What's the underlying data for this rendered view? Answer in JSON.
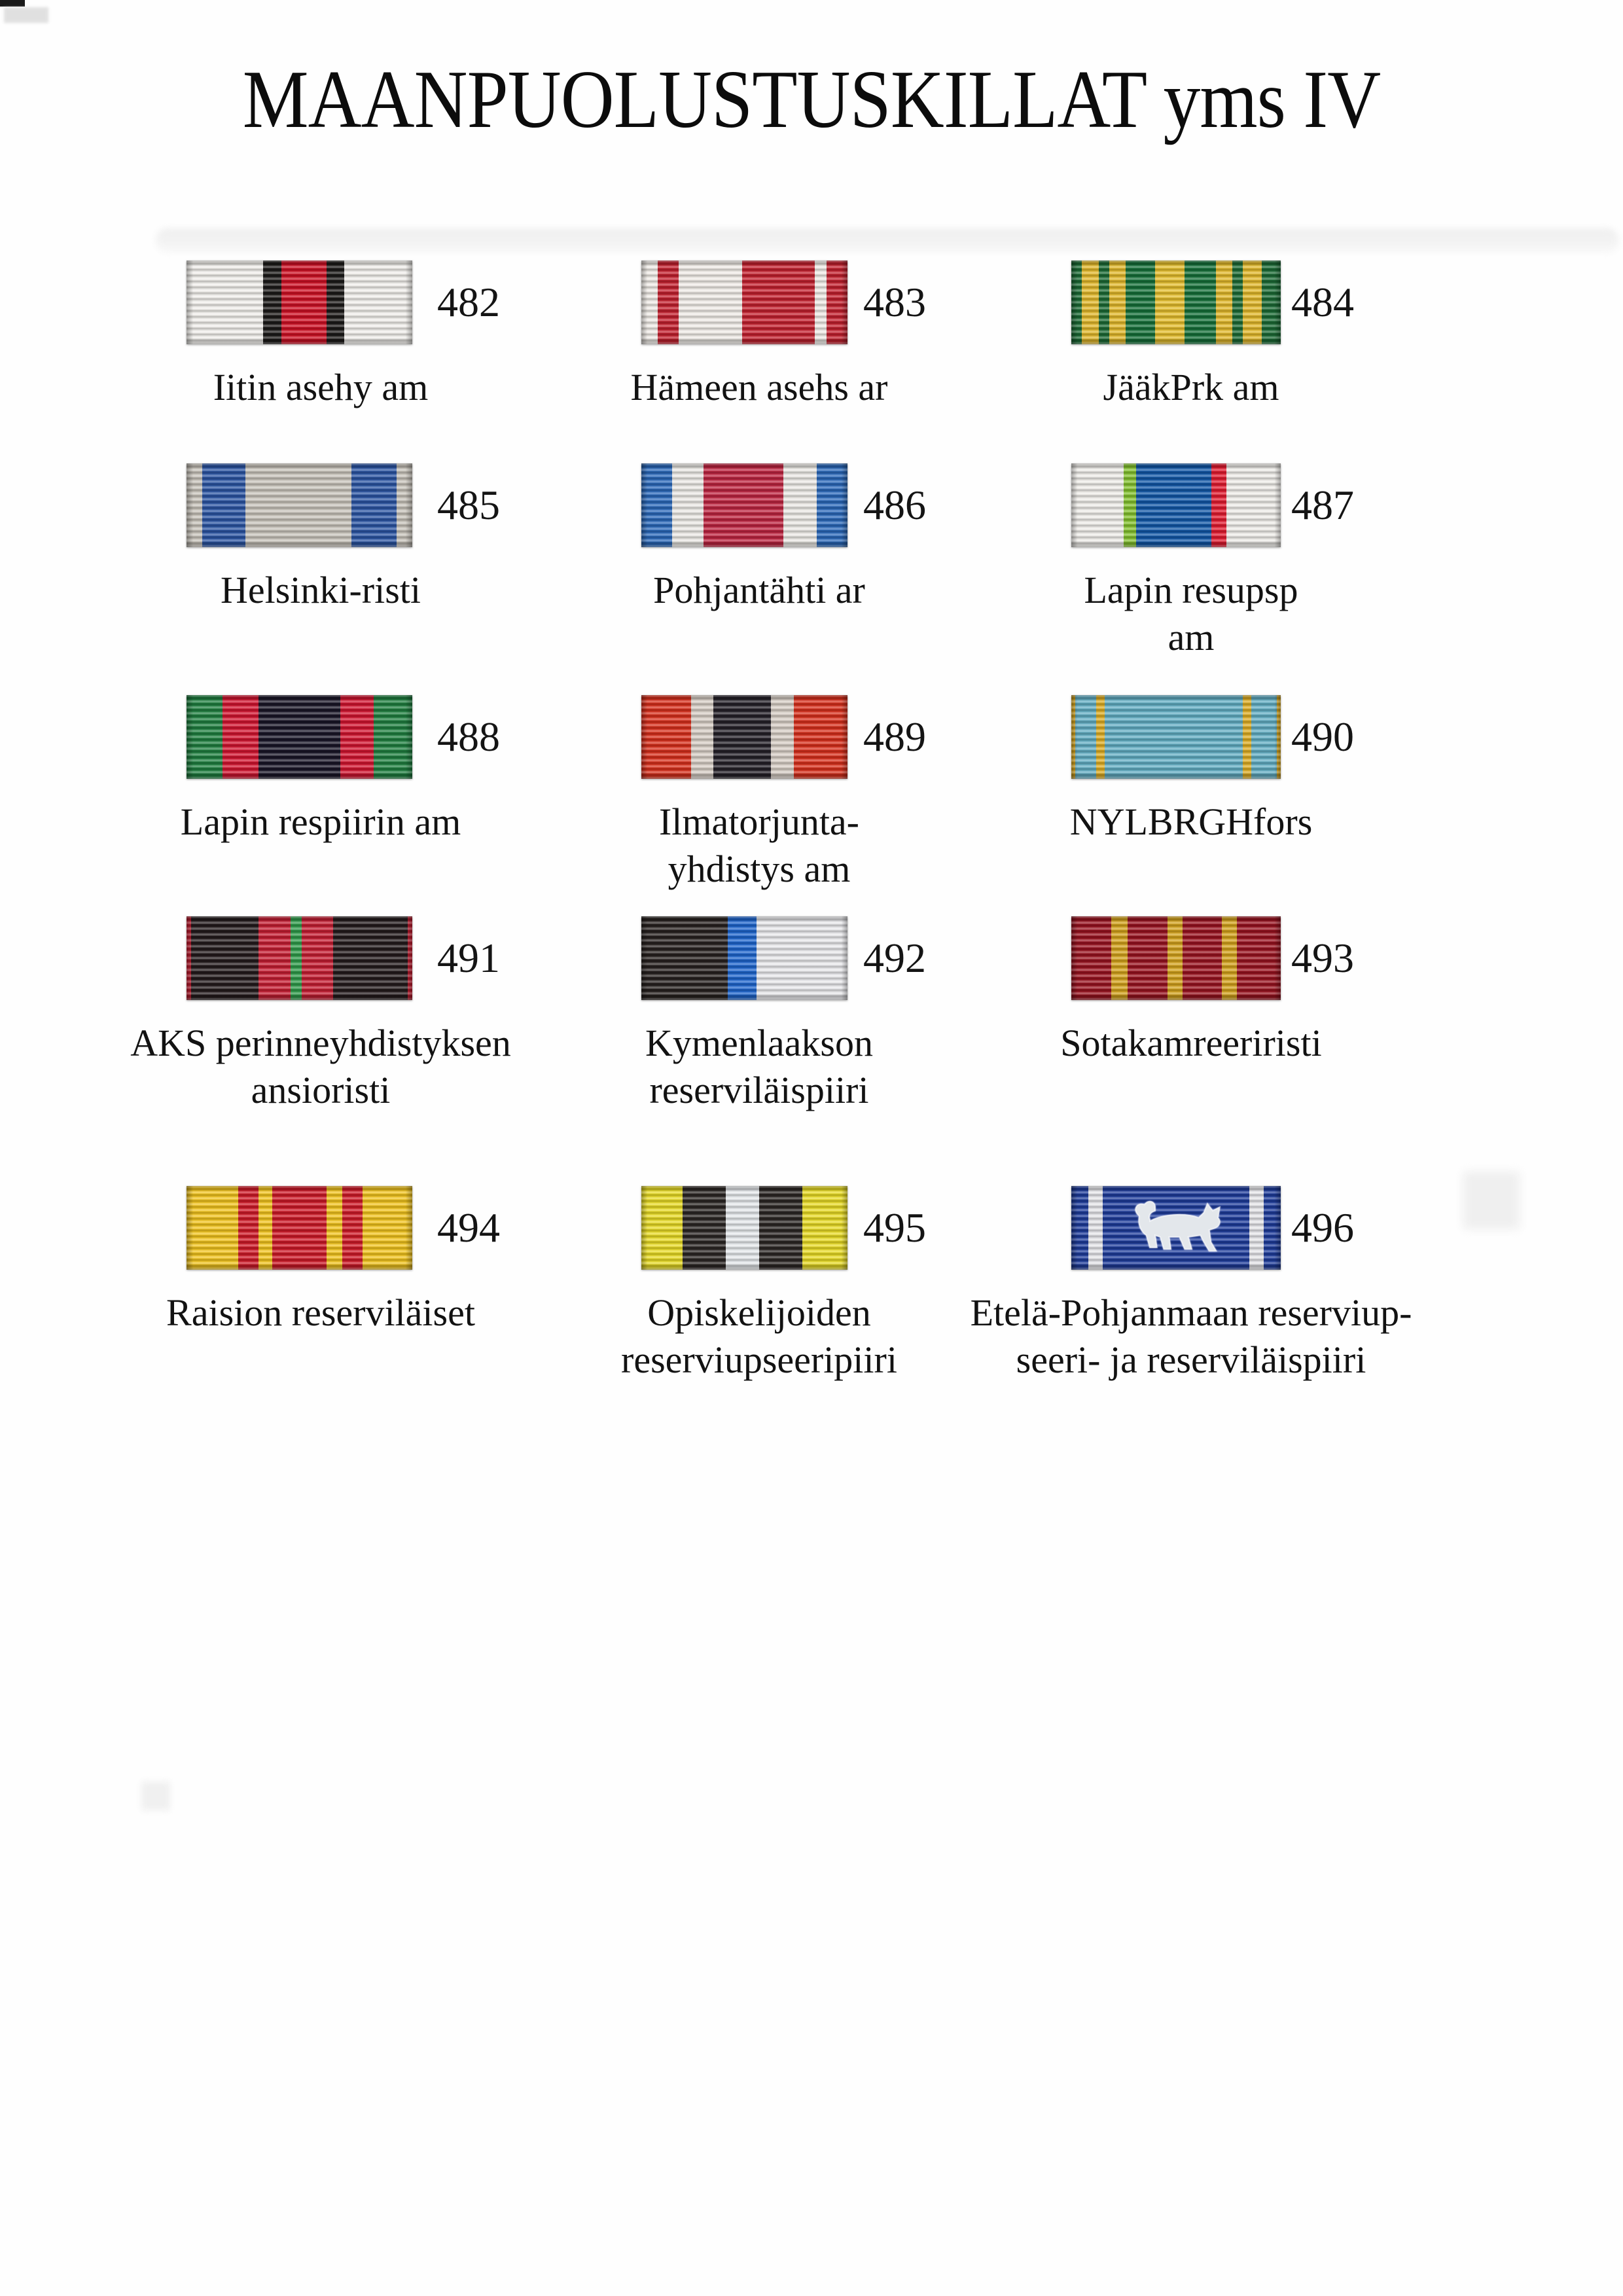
{
  "page": {
    "title": "MAANPUOLUSTUSKILLAT yms IV"
  },
  "ribbons": [
    {
      "number": "482",
      "caption": [
        "Iitin asehy am"
      ],
      "stripes": [
        [
          "#f2f0ec",
          34
        ],
        [
          "#1c1a18",
          8
        ],
        [
          "#cf1024",
          20
        ],
        [
          "#1c1a18",
          8
        ],
        [
          "#f2f0ec",
          30
        ]
      ]
    },
    {
      "number": "483",
      "caption": [
        "Hämeen asehs ar"
      ],
      "stripes": [
        [
          "#f1ede8",
          8
        ],
        [
          "#c4202e",
          10
        ],
        [
          "#f1ede8",
          31
        ],
        [
          "#c4202e",
          35
        ],
        [
          "#f1ede8",
          6
        ],
        [
          "#c4202e",
          10
        ]
      ]
    },
    {
      "number": "484",
      "caption": [
        "JääkPrk am"
      ],
      "stripes": [
        [
          "#1b6b35",
          5
        ],
        [
          "#e3b92b",
          8
        ],
        [
          "#1b6b35",
          5
        ],
        [
          "#e3b92b",
          8
        ],
        [
          "#157039",
          14
        ],
        [
          "#e5be2c",
          14
        ],
        [
          "#157039",
          15
        ],
        [
          "#e3b92b",
          8
        ],
        [
          "#1b6b35",
          5
        ],
        [
          "#e3b92b",
          9
        ],
        [
          "#1b6b35",
          9
        ]
      ]
    },
    {
      "number": "485",
      "caption": [
        "Helsinki-risti"
      ],
      "stripes": [
        [
          "#c9c4bb",
          7
        ],
        [
          "#2b55a4",
          19
        ],
        [
          "#c9c4bb",
          47
        ],
        [
          "#2b55a4",
          20
        ],
        [
          "#c9c4bb",
          7
        ]
      ]
    },
    {
      "number": "486",
      "caption": [
        "Pohjantähti ar"
      ],
      "stripes": [
        [
          "#2a69bb",
          15
        ],
        [
          "#eceae6",
          15
        ],
        [
          "#bf2440",
          39
        ],
        [
          "#eceae6",
          16
        ],
        [
          "#2a69bb",
          15
        ]
      ]
    },
    {
      "number": "487",
      "caption": [
        "Lapin resupsp",
        "am"
      ],
      "stripes": [
        [
          "#f0eeea",
          25
        ],
        [
          "#84c32e",
          6
        ],
        [
          "#1157a8",
          36
        ],
        [
          "#e41b30",
          7
        ],
        [
          "#f0eeea",
          26
        ]
      ]
    },
    {
      "number": "488",
      "caption": [
        "Lapin respiirin am"
      ],
      "stripes": [
        [
          "#1f8040",
          16
        ],
        [
          "#d31430",
          16
        ],
        [
          "#191527",
          36
        ],
        [
          "#d31430",
          15
        ],
        [
          "#1f8040",
          17
        ]
      ]
    },
    {
      "number": "489",
      "caption": [
        "Ilmatorjunta-",
        "yhdistys am"
      ],
      "stripes": [
        [
          "#d92f1c",
          24
        ],
        [
          "#d8cfc6",
          11
        ],
        [
          "#242028",
          28
        ],
        [
          "#d8cfc6",
          11
        ],
        [
          "#d92f1c",
          26
        ]
      ]
    },
    {
      "number": "490",
      "caption": [
        "NYLBRGHfors"
      ],
      "stripes": [
        [
          "#dfae24",
          2
        ],
        [
          "#62aec4",
          10
        ],
        [
          "#dfae24",
          4
        ],
        [
          "#62aec4",
          66
        ],
        [
          "#dfae24",
          4
        ],
        [
          "#62aec4",
          12
        ],
        [
          "#dfae24",
          2
        ]
      ]
    },
    {
      "number": "491",
      "caption": [
        "AKS perinneyhdistyksen",
        "ansioristi"
      ],
      "stripes": [
        [
          "#c81f33",
          2
        ],
        [
          "#231a1c",
          30
        ],
        [
          "#c61d32",
          14
        ],
        [
          "#2f9c4b",
          5
        ],
        [
          "#c61d32",
          14
        ],
        [
          "#231a1c",
          33
        ],
        [
          "#c81f33",
          2
        ]
      ]
    },
    {
      "number": "492",
      "caption": [
        "Kymenlaakson",
        "reserviläispiiri"
      ],
      "stripes": [
        [
          "#27211f",
          42
        ],
        [
          "#1e66cf",
          14
        ],
        [
          "#e9e9ec",
          44
        ]
      ]
    },
    {
      "number": "493",
      "caption": [
        "Sotakamreeriristi"
      ],
      "stripes": [
        [
          "#99121f",
          19
        ],
        [
          "#d4a31c",
          8
        ],
        [
          "#99121f",
          19
        ],
        [
          "#d4a31c",
          7
        ],
        [
          "#99121f",
          19
        ],
        [
          "#d4a31c",
          7
        ],
        [
          "#99121f",
          21
        ]
      ]
    },
    {
      "number": "494",
      "caption": [
        "Raision reserviläiset"
      ],
      "stripes": [
        [
          "#f3c51e",
          23
        ],
        [
          "#d01a28",
          9
        ],
        [
          "#f3c51e",
          6
        ],
        [
          "#ce1827",
          24
        ],
        [
          "#f3c51e",
          7
        ],
        [
          "#d01a28",
          9
        ],
        [
          "#f3c51e",
          22
        ]
      ]
    },
    {
      "number": "495",
      "caption": [
        "Opiskelijoiden",
        "reserviupseeripiiri"
      ],
      "stripes": [
        [
          "#e9dc25",
          20
        ],
        [
          "#2b2624",
          21
        ],
        [
          "#e6e9ec",
          16
        ],
        [
          "#2b2624",
          21
        ],
        [
          "#e9dc25",
          22
        ]
      ]
    },
    {
      "number": "496",
      "caption": [
        "Etelä-Pohjanmaan reserviup-",
        "seeri- ja reserviläispiiri"
      ],
      "emblem": "silver-lynx",
      "stripes": [
        [
          "#1e3c9c",
          8
        ],
        [
          "#e6e6ea",
          7
        ],
        [
          "#1e3c9c",
          70
        ],
        [
          "#e6e6ea",
          7
        ],
        [
          "#1e3c9c",
          8
        ]
      ]
    }
  ]
}
